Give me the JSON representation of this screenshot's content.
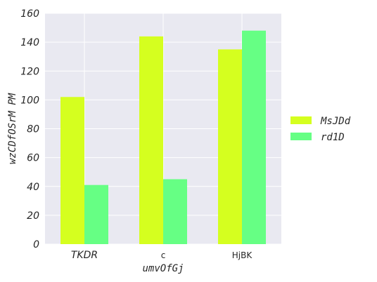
{
  "chart_data": {
    "type": "bar",
    "categories": [
      "TKDR",
      "c",
      "HjBK"
    ],
    "series": [
      {
        "name": "MsJDd",
        "values": [
          102,
          144,
          135
        ],
        "color": "#d5ff1f"
      },
      {
        "name": "rd1D",
        "values": [
          41,
          45,
          148
        ],
        "color": "#66ff84"
      }
    ],
    "xlabel": "umvOfGj",
    "ylabel": "wzCDfOSrM PM",
    "ylim": [
      0,
      160
    ],
    "yticks": [
      0,
      20,
      40,
      60,
      80,
      100,
      120,
      140,
      160
    ],
    "grid": true,
    "legend_position": "right"
  },
  "colors": {
    "plot_background": "#e9e9f1",
    "grid": "#ffffff"
  }
}
